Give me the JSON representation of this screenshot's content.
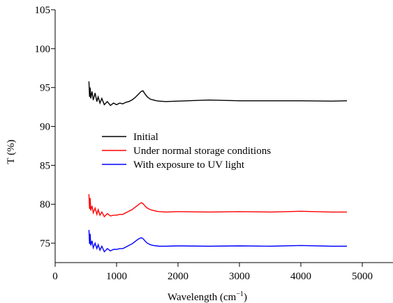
{
  "chart_data": {
    "type": "line",
    "xlabel": "Wavelength (cm",
    "xlabel_superscript": "−1",
    "xlabel_close": ")",
    "ylabel": "T (%)",
    "xlim": [
      0,
      5500
    ],
    "ylim": [
      72.5,
      105
    ],
    "xticks": [
      0,
      1000,
      2000,
      3000,
      4000,
      5000
    ],
    "xtick_labels": [
      "0",
      "1000",
      "2000",
      "3000",
      "4000",
      "5000"
    ],
    "yticks": [
      75,
      80,
      85,
      90,
      95,
      100,
      105
    ],
    "ytick_labels": [
      "75",
      "80",
      "85",
      "90",
      "95",
      "100",
      "105"
    ],
    "legend_position": "center-left",
    "grid": false,
    "series": [
      {
        "name": "Initial",
        "color": "#000000",
        "x": [
          550,
          560,
          570,
          580,
          600,
          620,
          650,
          680,
          700,
          730,
          760,
          800,
          850,
          900,
          950,
          1000,
          1050,
          1100,
          1150,
          1200,
          1250,
          1300,
          1350,
          1400,
          1430,
          1460,
          1500,
          1550,
          1600,
          1650,
          1700,
          1800,
          2000,
          2500,
          3000,
          3500,
          4000,
          4500,
          4750
        ],
        "y": [
          95.8,
          93.8,
          95.0,
          93.6,
          94.5,
          93.4,
          94.3,
          93.2,
          93.8,
          93.0,
          93.6,
          92.8,
          93.2,
          92.7,
          93.0,
          92.8,
          93.0,
          92.9,
          93.1,
          93.2,
          93.4,
          93.7,
          94.1,
          94.5,
          94.6,
          94.2,
          93.8,
          93.5,
          93.4,
          93.3,
          93.25,
          93.2,
          93.25,
          93.4,
          93.3,
          93.3,
          93.3,
          93.25,
          93.3
        ]
      },
      {
        "name": "Under normal storage conditions",
        "color": "#ff0000",
        "x": [
          550,
          560,
          570,
          580,
          600,
          620,
          650,
          680,
          700,
          730,
          760,
          800,
          850,
          900,
          950,
          1000,
          1050,
          1100,
          1150,
          1200,
          1250,
          1300,
          1350,
          1400,
          1430,
          1460,
          1500,
          1550,
          1600,
          1650,
          1700,
          1800,
          2000,
          2500,
          3000,
          3500,
          4000,
          4500,
          4750
        ],
        "y": [
          81.3,
          79.4,
          80.8,
          79.2,
          79.8,
          78.9,
          79.5,
          78.7,
          79.3,
          78.6,
          79.0,
          78.4,
          78.8,
          78.5,
          78.6,
          78.6,
          78.7,
          78.7,
          78.9,
          79.1,
          79.3,
          79.6,
          79.9,
          80.2,
          80.1,
          79.8,
          79.5,
          79.3,
          79.2,
          79.1,
          79.05,
          79.0,
          79.05,
          79.0,
          79.05,
          79.0,
          79.1,
          79.0,
          79.0
        ]
      },
      {
        "name": "With exposure to UV light",
        "color": "#0000ff",
        "x": [
          550,
          560,
          570,
          580,
          600,
          620,
          650,
          680,
          700,
          730,
          760,
          800,
          850,
          900,
          950,
          1000,
          1050,
          1100,
          1150,
          1200,
          1250,
          1300,
          1350,
          1400,
          1430,
          1460,
          1500,
          1550,
          1600,
          1650,
          1700,
          1800,
          2000,
          2500,
          3000,
          3500,
          4000,
          4500,
          4750
        ],
        "y": [
          76.7,
          74.9,
          76.2,
          74.7,
          75.3,
          74.4,
          75.0,
          74.3,
          74.8,
          74.1,
          74.6,
          73.9,
          74.3,
          74.0,
          74.2,
          74.2,
          74.3,
          74.3,
          74.5,
          74.7,
          74.9,
          75.2,
          75.5,
          75.7,
          75.6,
          75.3,
          75.0,
          74.8,
          74.7,
          74.65,
          74.6,
          74.6,
          74.65,
          74.6,
          74.65,
          74.6,
          74.7,
          74.6,
          74.6
        ]
      }
    ]
  }
}
